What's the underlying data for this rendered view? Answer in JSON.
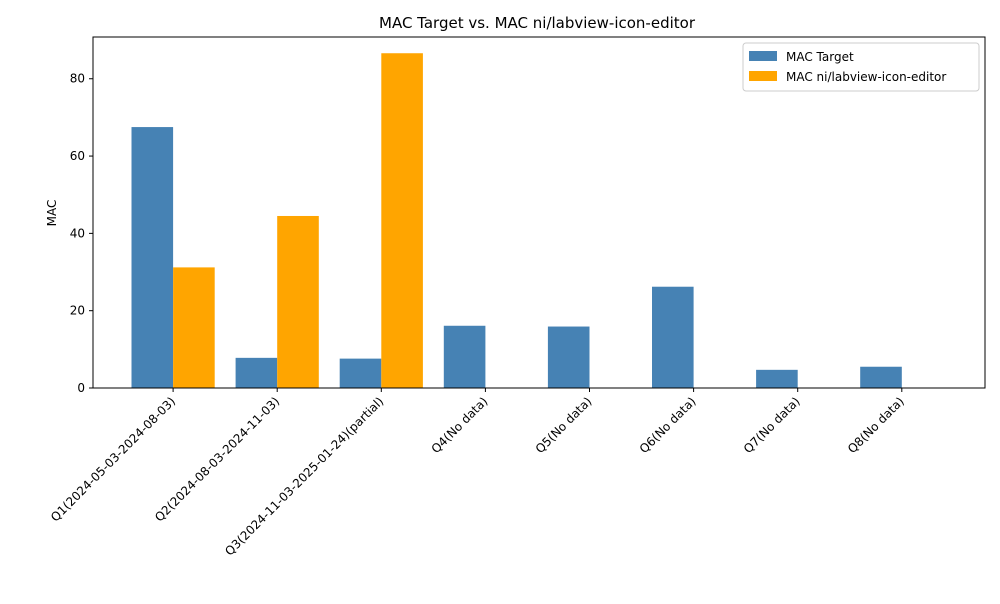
{
  "chart_data": {
    "type": "bar",
    "title": "MAC Target vs. MAC ni/labview-icon-editor",
    "xlabel": "",
    "ylabel": "MAC",
    "ylim": [
      0,
      90.8
    ],
    "yticks": [
      0,
      20,
      40,
      60,
      80
    ],
    "grid": false,
    "legend_position": "top-right",
    "categories": [
      "Q1(2024-05-03-2024-08-03)",
      "Q2(2024-08-03-2024-11-03)",
      "Q3(2024-11-03-2025-01-24)(partial)",
      "Q4(No data)",
      "Q5(No data)",
      "Q6(No data)",
      "Q7(No data)",
      "Q8(No data)"
    ],
    "series": [
      {
        "name": "MAC Target",
        "color": "#4682b4",
        "values": [
          67.5,
          7.8,
          7.6,
          16.1,
          15.9,
          26.2,
          4.7,
          5.5
        ]
      },
      {
        "name": "MAC ni/labview-icon-editor",
        "color": "#ffa500",
        "values": [
          31.2,
          44.5,
          86.6,
          0,
          0,
          0,
          0,
          0
        ]
      }
    ]
  }
}
